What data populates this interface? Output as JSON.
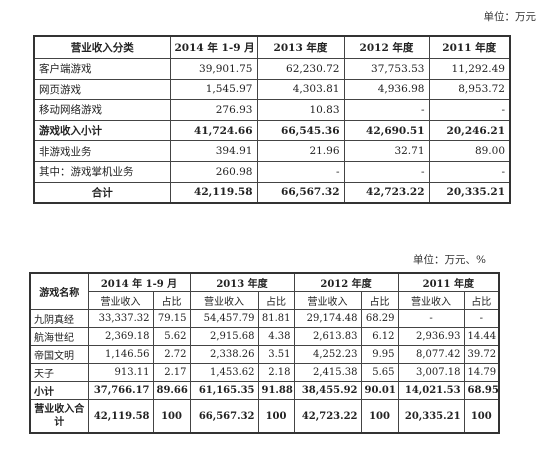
{
  "unit_top": "单位：万元",
  "unit_bottom": "单位：万元、%",
  "table1": {
    "headers": [
      "营业收入分类",
      "2014 年 1-9 月",
      "2013 年度",
      "2012 年度",
      "2011 年度"
    ],
    "rows": [
      {
        "label": "客户端游戏",
        "v": [
          "39,901.75",
          "62,230.72",
          "37,753.53",
          "11,292.49"
        ]
      },
      {
        "label": "网页游戏",
        "v": [
          "1,545.97",
          "4,303.81",
          "4,936.98",
          "8,953.72"
        ]
      },
      {
        "label": "移动网络游戏",
        "v": [
          "276.93",
          "10.83",
          "-",
          "-"
        ]
      },
      {
        "label": "游戏收入小计",
        "v": [
          "41,724.66",
          "66,545.36",
          "42,690.51",
          "20,246.21"
        ]
      },
      {
        "label": "非游戏业务",
        "v": [
          "394.91",
          "21.96",
          "32.71",
          "89.00"
        ]
      },
      {
        "label": "其中：游戏掌机业务",
        "v": [
          "260.98",
          "-",
          "-",
          "-"
        ]
      },
      {
        "label": "合计",
        "v": [
          "42,119.58",
          "66,567.32",
          "42,723.22",
          "20,335.21"
        ]
      }
    ]
  },
  "table2": {
    "name_header": "游戏名称",
    "periods": [
      "2014 年 1-9 月",
      "2013 年度",
      "2012 年度",
      "2011 年度"
    ],
    "sub_revenue": "营业收入",
    "sub_share": "占比",
    "rows": [
      {
        "label": "九阴真经",
        "v": [
          "33,337.32",
          "79.15",
          "54,457.79",
          "81.81",
          "29,174.48",
          "68.29",
          "-",
          "-"
        ]
      },
      {
        "label": "航海世纪",
        "v": [
          "2,369.18",
          "5.62",
          "2,915.68",
          "4.38",
          "2,613.83",
          "6.12",
          "2,936.93",
          "14.44"
        ]
      },
      {
        "label": "帝国文明",
        "v": [
          "1,146.56",
          "2.72",
          "2,338.26",
          "3.51",
          "4,252.23",
          "9.95",
          "8,077.42",
          "39.72"
        ]
      },
      {
        "label": "天子",
        "v": [
          "913.11",
          "2.17",
          "1,453.62",
          "2.18",
          "2,415.38",
          "5.65",
          "3,007.18",
          "14.79"
        ]
      },
      {
        "label": "小计",
        "v": [
          "37,766.17",
          "89.66",
          "61,165.35",
          "91.88",
          "38,455.92",
          "90.01",
          "14,021.53",
          "68.95"
        ]
      },
      {
        "label": "营业收入合计",
        "v": [
          "42,119.58",
          "100",
          "66,567.32",
          "100",
          "42,723.22",
          "100",
          "20,335.21",
          "100"
        ]
      }
    ]
  }
}
